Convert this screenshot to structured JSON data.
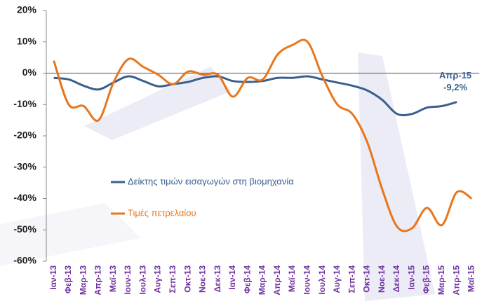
{
  "chart_data": {
    "type": "line",
    "categories": [
      "Ιαν-13",
      "Φεβ-13",
      "Μαρ-13",
      "Απρ-13",
      "Μαϊ-13",
      "Ιουν-13",
      "Ιουλ-13",
      "Αυγ-13",
      "Σεπ-13",
      "Οκτ-13",
      "Νοε-13",
      "Δεκ-13",
      "Ιαν-14",
      "Φεβ-14",
      "Μαρ-14",
      "Απρ-14",
      "Μαϊ-14",
      "Ιουν-14",
      "Ιουλ-14",
      "Αυγ-14",
      "Σεπ-14",
      "Οκτ-14",
      "Νοε-14",
      "Δεκ-14",
      "Ιαν-15",
      "Φεβ-15",
      "Μαρ-15",
      "Απρ-15",
      "Μαϊ-15"
    ],
    "series": [
      {
        "name": "Δείκτης τιμών εισαγωγών στη βιομηχανία",
        "color": "#3a5f8f",
        "values": [
          -1.5,
          -2,
          -4,
          -5.2,
          -3,
          -1,
          -2.5,
          -4.2,
          -3.5,
          -2.8,
          -1.5,
          -1,
          -2.5,
          -2.8,
          -2.5,
          -1.5,
          -1.5,
          -1,
          -2,
          -3,
          -4,
          -5.5,
          -8.5,
          -13,
          -13,
          -11,
          -10.5,
          -9.2,
          null
        ],
        "value_labels": [
          null,
          null,
          null,
          null,
          null,
          null,
          null,
          null,
          null,
          null,
          null,
          null,
          null,
          null,
          null,
          null,
          null,
          null,
          null,
          null,
          null,
          null,
          null,
          null,
          null,
          null,
          null,
          "-9,2%",
          null
        ]
      },
      {
        "name": "Τιμές πετρελαίου",
        "color": "#e8761c",
        "values": [
          4,
          -10,
          -10.5,
          -15,
          -3,
          4.5,
          2,
          -0.5,
          -3.5,
          0.5,
          -0.5,
          -0.5,
          -7.5,
          -1.5,
          -2,
          6,
          9,
          10,
          -1,
          -10,
          -13,
          -22,
          -37,
          -49,
          -49.5,
          -43,
          -48.5,
          -38,
          -40
        ]
      }
    ],
    "ylim": [
      -60,
      20
    ],
    "yticks": [
      {
        "value": -60,
        "label": "-60%"
      },
      {
        "value": -50,
        "label": "-50%"
      },
      {
        "value": -40,
        "label": "-40%"
      },
      {
        "value": -30,
        "label": "-30%"
      },
      {
        "value": -20,
        "label": "-20%"
      },
      {
        "value": -10,
        "label": "-10%"
      },
      {
        "value": 0,
        "label": "0%"
      },
      {
        "value": 10,
        "label": "10%"
      },
      {
        "value": 20,
        "label": "20%"
      }
    ],
    "grid": false
  }
}
